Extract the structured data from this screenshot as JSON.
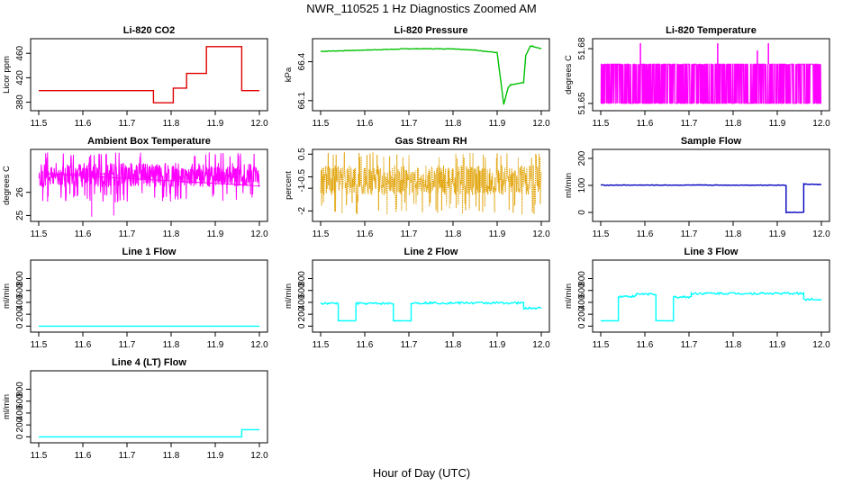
{
  "figure": {
    "title": "NWR_110525  1 Hz Diagnostics Zoomed AM",
    "xlabel": "Hour of Day (UTC)"
  },
  "chart_data": [
    {
      "type": "line",
      "title": "Li-820 CO2",
      "ylabel": "Licor ppm",
      "color": "#e00000",
      "xlim": [
        11.5,
        12.0
      ],
      "ylim": [
        372,
        478
      ],
      "xticks": [
        "11.5",
        "11.6",
        "11.7",
        "11.8",
        "11.9",
        "12.0"
      ],
      "yticks": [
        380,
        420,
        460
      ],
      "series": [
        {
          "x": [
            11.5,
            11.76,
            11.76,
            11.805,
            11.805,
            11.835,
            11.835,
            11.88,
            11.88,
            11.96,
            11.96,
            12.0
          ],
          "y": [
            399,
            399,
            379,
            379,
            403,
            403,
            427,
            427,
            471,
            471,
            399,
            399
          ]
        }
      ]
    },
    {
      "type": "line",
      "title": "Li-820 Pressure",
      "ylabel": "kPa",
      "color": "#00c000",
      "xlim": [
        11.5,
        12.0
      ],
      "ylim": [
        66.05,
        66.55
      ],
      "xticks": [
        "11.5",
        "11.6",
        "11.7",
        "11.8",
        "11.9",
        "12.0"
      ],
      "yticks": [
        66.1,
        66.4
      ],
      "series": [
        {
          "x": [
            11.5,
            11.6,
            11.7,
            11.8,
            11.85,
            11.9,
            11.915,
            11.925,
            11.93,
            11.96,
            11.965,
            11.975,
            11.98,
            12.0
          ],
          "y": [
            66.48,
            66.49,
            66.5,
            66.5,
            66.49,
            66.47,
            66.07,
            66.2,
            66.22,
            66.24,
            66.45,
            66.52,
            66.52,
            66.5
          ]
        }
      ]
    },
    {
      "type": "line",
      "title": "Li-820 Temperature",
      "ylabel": "degrees C",
      "color": "#ff00ff",
      "xlim": [
        11.5,
        12.0
      ],
      "ylim": [
        51.648,
        51.6835
      ],
      "xticks": [
        "11.5",
        "11.6",
        "11.7",
        "11.8",
        "11.9",
        "12.0"
      ],
      "yticks": [
        51.65,
        51.68
      ],
      "series": [
        {
          "baseline": 51.65,
          "levels": [
            51.65,
            51.6715
          ],
          "spikes": [
            {
              "x": 11.59,
              "y": 51.683
            },
            {
              "x": 11.765,
              "y": 51.683
            },
            {
              "x": 11.855,
              "y": 51.679
            },
            {
              "x": 11.88,
              "y": 51.683
            }
          ]
        }
      ]
    },
    {
      "type": "line",
      "title": "Ambient Box Temperature",
      "ylabel": "degrees C",
      "color": "#ff00ff",
      "xlim": [
        11.5,
        12.0
      ],
      "ylim": [
        24.9,
        27.7
      ],
      "xticks": [
        "11.5",
        "11.6",
        "11.7",
        "11.8",
        "11.9",
        "12.0"
      ],
      "yticks": [
        25.0,
        26.0
      ],
      "series": [
        {
          "mean": 26.8,
          "band": [
            26.0,
            27.5
          ],
          "min_dips": [
            {
              "x": 11.52,
              "y": 25.6
            },
            {
              "x": 11.62,
              "y": 24.95
            },
            {
              "x": 11.67,
              "y": 25.0
            }
          ]
        }
      ]
    },
    {
      "type": "line",
      "title": "Gas Stream RH",
      "ylabel": "percent",
      "color": "#e0a000",
      "xlim": [
        11.5,
        12.0
      ],
      "ylim": [
        -2.3,
        0.55
      ],
      "xticks": [
        "11.5",
        "11.6",
        "11.7",
        "11.8",
        "11.9",
        "12.0"
      ],
      "yticks": [
        -2.0,
        -1.0,
        -0.5,
        0.5
      ],
      "series": [
        {
          "mean": -0.6,
          "band": [
            -1.6,
            0.3
          ]
        }
      ]
    },
    {
      "type": "line",
      "title": "Sample Flow",
      "ylabel": "ml/min",
      "color": "#0000c0",
      "xlim": [
        11.5,
        12.0
      ],
      "ylim": [
        -20,
        220
      ],
      "xticks": [
        "11.5",
        "11.6",
        "11.7",
        "11.8",
        "11.9",
        "12.0"
      ],
      "yticks": [
        0,
        100,
        200
      ],
      "series": [
        {
          "x": [
            11.5,
            11.92,
            11.92,
            11.96,
            11.96,
            12.0
          ],
          "y": [
            101,
            101,
            0,
            0,
            105,
            103
          ]
        }
      ]
    },
    {
      "type": "line",
      "title": "Line 1 Flow",
      "ylabel": "ml/min",
      "color": "#00ffff",
      "xlim": [
        11.5,
        12.0
      ],
      "ylim": [
        -40,
        1050
      ],
      "xticks": [
        "11.5",
        "11.6",
        "11.7",
        "11.8",
        "11.9",
        "12.0"
      ],
      "yticks": [
        0,
        200,
        400,
        600,
        800
      ],
      "series": [
        {
          "x": [
            11.5,
            12.0
          ],
          "y": [
            0,
            0
          ]
        }
      ]
    },
    {
      "type": "line",
      "title": "Line 2 Flow",
      "ylabel": "ml/min",
      "color": "#00ffff",
      "xlim": [
        11.5,
        12.0
      ],
      "ylim": [
        -40,
        1050
      ],
      "xticks": [
        "11.5",
        "11.6",
        "11.7",
        "11.8",
        "11.9",
        "12.0"
      ],
      "yticks": [
        0,
        200,
        400,
        600,
        800
      ],
      "series": [
        {
          "x": [
            11.5,
            11.54,
            11.54,
            11.58,
            11.58,
            11.665,
            11.665,
            11.705,
            11.705,
            11.96,
            11.96,
            12.0
          ],
          "y": [
            380,
            380,
            90,
            90,
            380,
            380,
            90,
            90,
            390,
            390,
            300,
            300
          ]
        }
      ]
    },
    {
      "type": "line",
      "title": "Line 3 Flow",
      "ylabel": "ml/min",
      "color": "#00ffff",
      "xlim": [
        11.5,
        12.0
      ],
      "ylim": [
        -40,
        1050
      ],
      "xticks": [
        "11.5",
        "11.6",
        "11.7",
        "11.8",
        "11.9",
        "12.0"
      ],
      "yticks": [
        0,
        200,
        400,
        600,
        800
      ],
      "series": [
        {
          "x": [
            11.5,
            11.54,
            11.54,
            11.58,
            11.58,
            11.625,
            11.625,
            11.665,
            11.665,
            11.705,
            11.705,
            11.96,
            11.96,
            12.0
          ],
          "y": [
            90,
            90,
            500,
            500,
            540,
            540,
            90,
            90,
            490,
            490,
            550,
            550,
            450,
            450
          ]
        }
      ]
    },
    {
      "type": "line",
      "title": "Line 4 (LT) Flow",
      "ylabel": "ml/min",
      "color": "#00ffff",
      "xlim": [
        11.5,
        12.0
      ],
      "ylim": [
        -40,
        1050
      ],
      "xticks": [
        "11.5",
        "11.6",
        "11.7",
        "11.8",
        "11.9",
        "12.0"
      ],
      "yticks": [
        0,
        200,
        400,
        600,
        800
      ],
      "series": [
        {
          "x": [
            11.5,
            11.96,
            11.96,
            12.0
          ],
          "y": [
            0,
            0,
            120,
            120
          ]
        }
      ]
    }
  ]
}
